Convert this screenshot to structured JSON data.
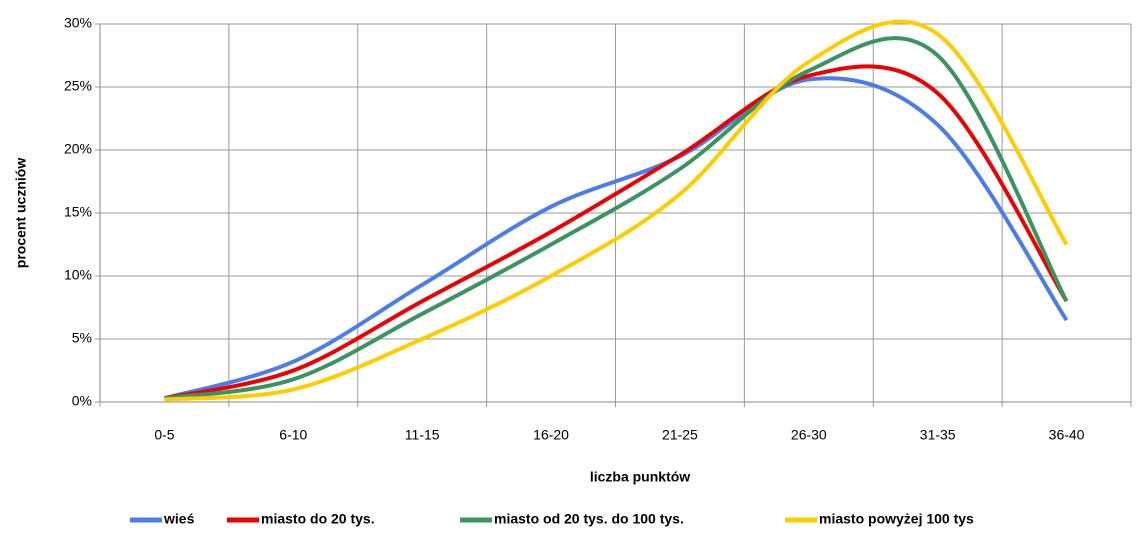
{
  "chart_data": {
    "type": "line",
    "smooth": true,
    "x_label": "liczba punktów",
    "y_label": "procent  uczniów",
    "categories": [
      "0-5",
      "6-10",
      "11-15",
      "16-20",
      "21-25",
      "26-30",
      "31-35",
      "36-40"
    ],
    "ylim": [
      0,
      30
    ],
    "yticks": [
      {
        "value": 0,
        "label": "0%"
      },
      {
        "value": 5,
        "label": "5%"
      },
      {
        "value": 10,
        "label": "10%"
      },
      {
        "value": 15,
        "label": "15%"
      },
      {
        "value": 20,
        "label": "20%"
      },
      {
        "value": 25,
        "label": "25%"
      },
      {
        "value": 30,
        "label": "30%"
      }
    ],
    "grid": true,
    "legend": "bottom",
    "series": [
      {
        "name": "wieś",
        "color": "#4a7cf0",
        "values": [
          0.3,
          3.2,
          9.3,
          15.5,
          19.5,
          25.6,
          22.0,
          6.5
        ]
      },
      {
        "name": "miasto do 20 tys.",
        "color": "#ee0000",
        "values": [
          0.3,
          2.5,
          8.0,
          13.5,
          19.6,
          25.9,
          24.5,
          8.0
        ]
      },
      {
        "name": "miasto od 20 tys. do 100 tys.",
        "color": "#3a9460",
        "values": [
          0.3,
          1.8,
          7.0,
          12.5,
          18.5,
          26.3,
          27.5,
          8.0
        ]
      },
      {
        "name": "miasto powyżej 100 tys",
        "color": "#ffcc00",
        "values": [
          0.2,
          1.0,
          5.0,
          10.0,
          16.5,
          27.0,
          29.2,
          12.5
        ]
      }
    ]
  }
}
